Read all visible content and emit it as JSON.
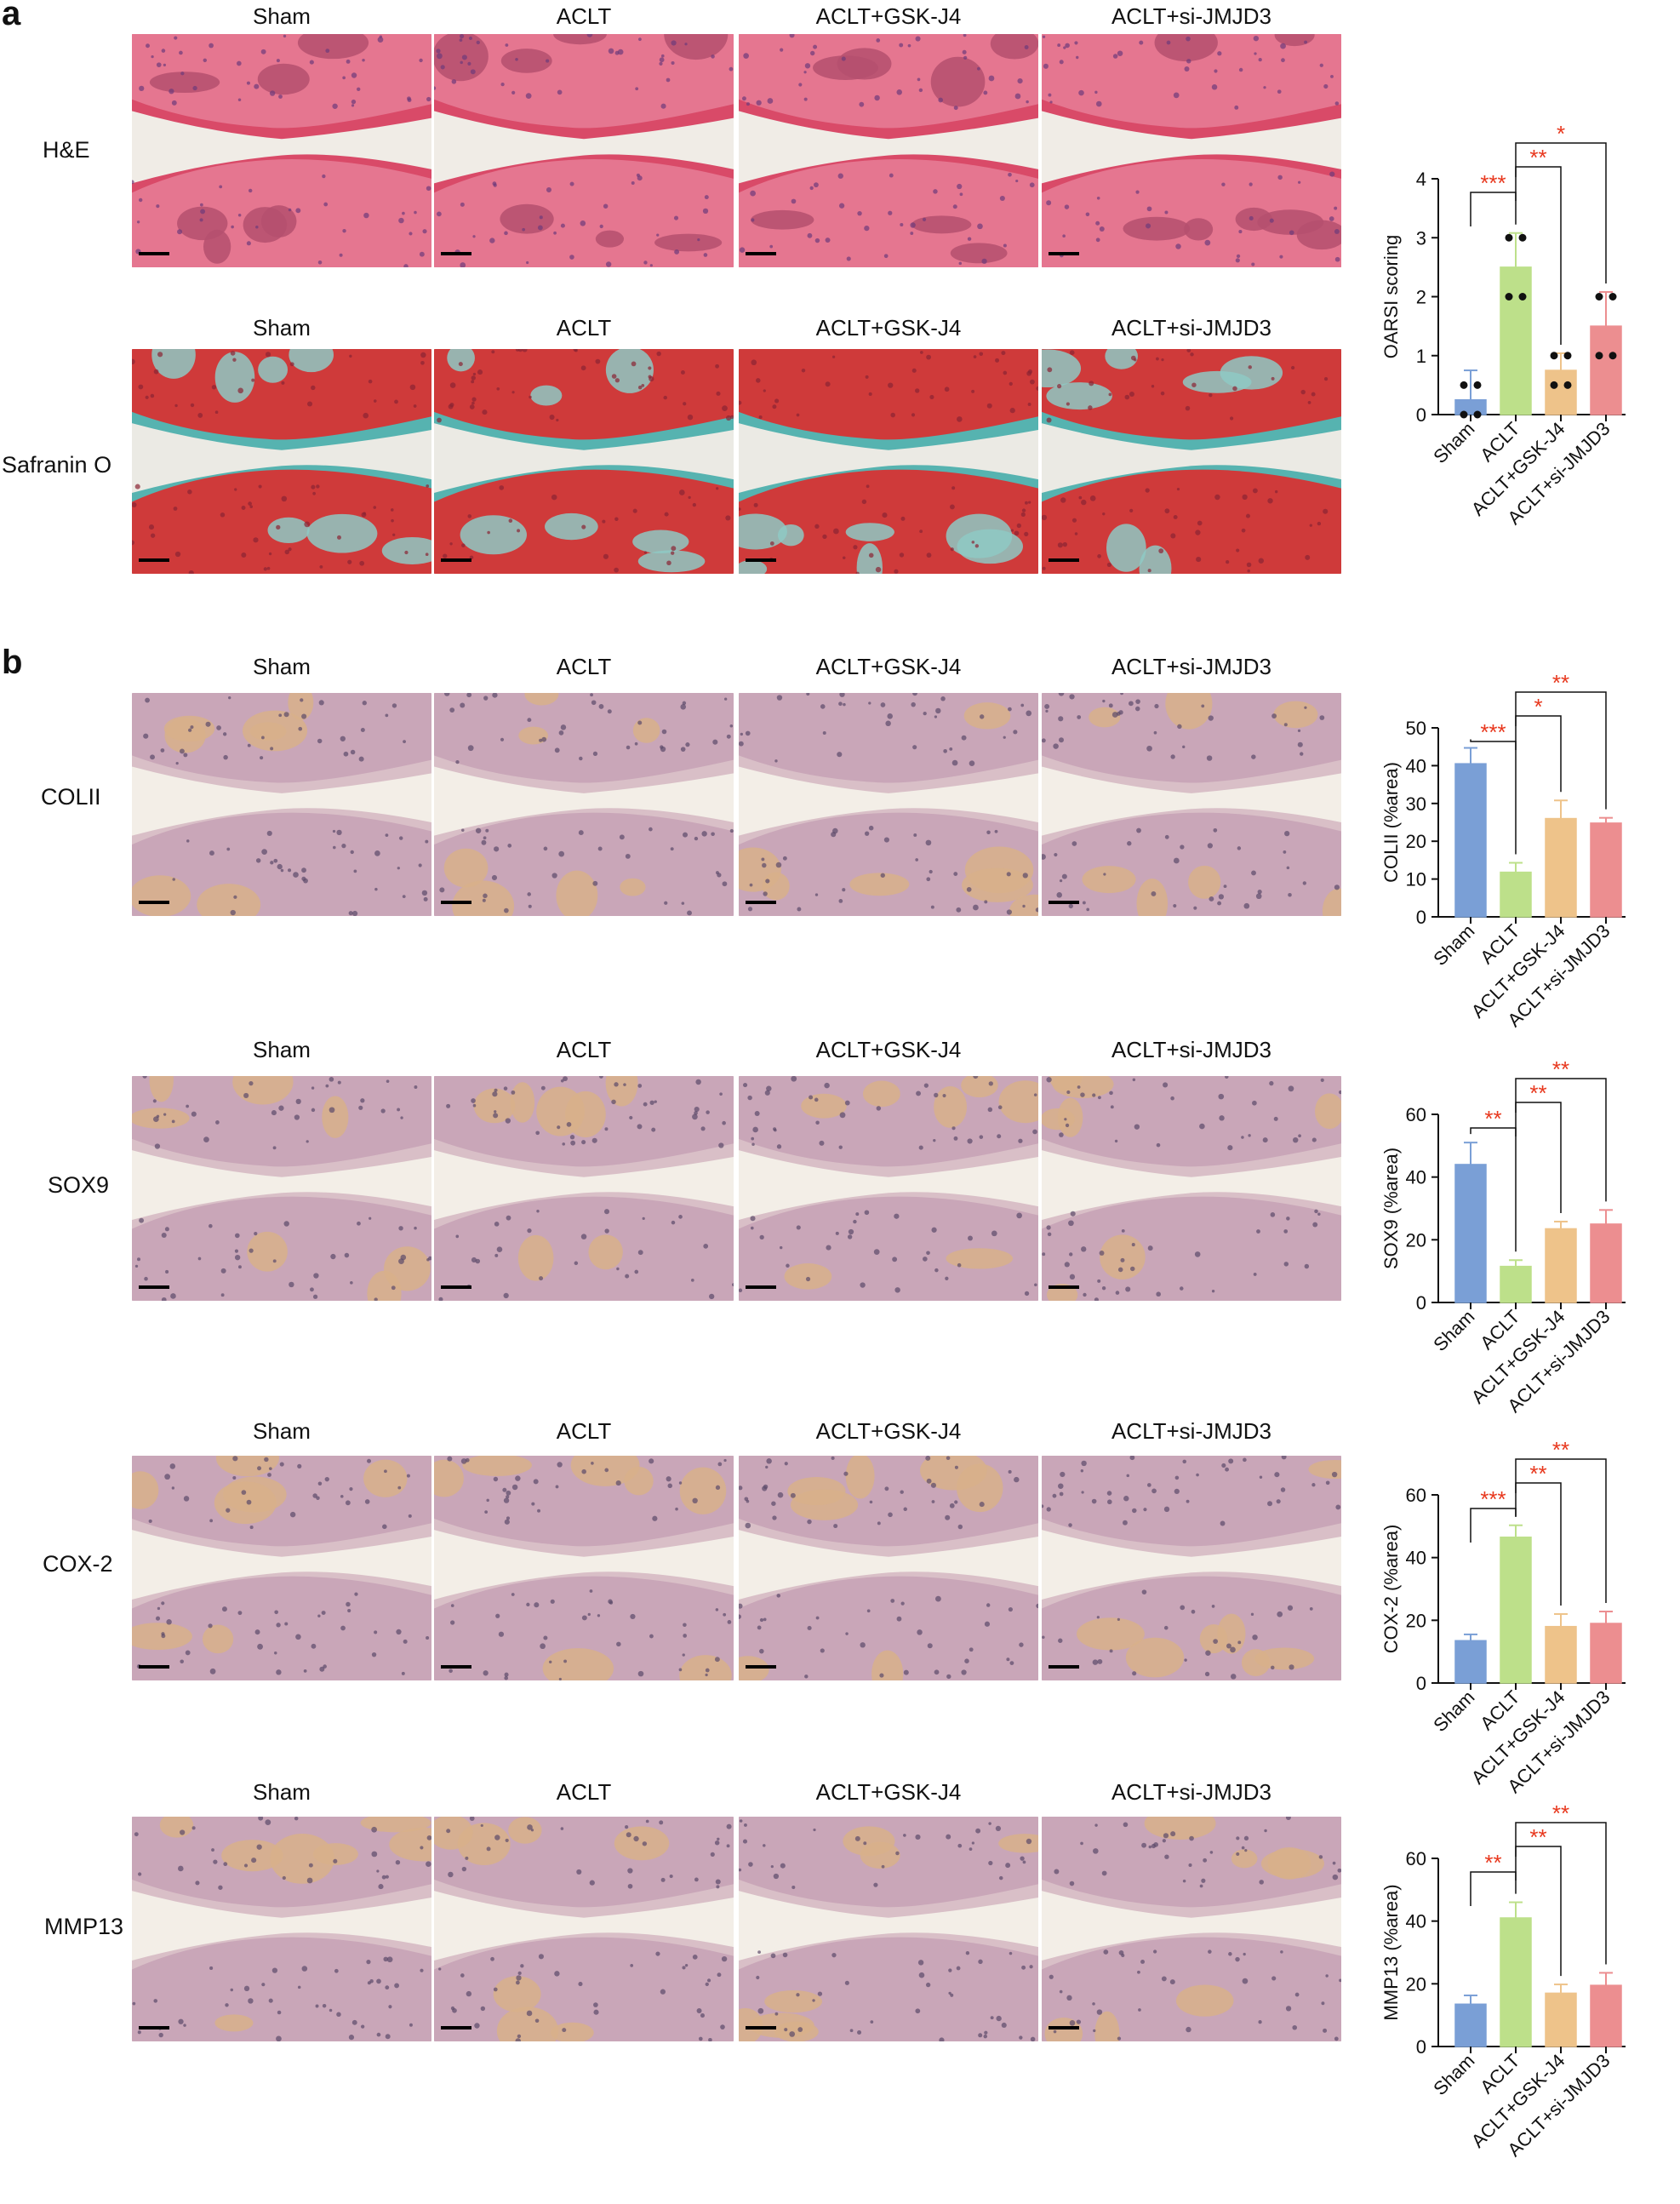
{
  "panels": {
    "a": {
      "letter": "a"
    },
    "b": {
      "letter": "b"
    }
  },
  "groups": [
    "Sham",
    "ACLT",
    "ACLT+GSK-J4",
    "ACLT+si-JMJD3"
  ],
  "colors": {
    "Sham": "#7a9fd6",
    "ACLT": "#bde08a",
    "ACLT+GSK-J4": "#eec38a",
    "ACLT+si-JMJD3": "#ec8e90",
    "significance": "#e8381e"
  },
  "rows": [
    {
      "label": "H&E",
      "stain": "he"
    },
    {
      "label": "Safranin O",
      "stain": "saf"
    },
    {
      "label": "COLII",
      "stain": "ihc"
    },
    {
      "label": "SOX9",
      "stain": "ihc"
    },
    {
      "label": "COX-2",
      "stain": "ihc"
    },
    {
      "label": "MMP13",
      "stain": "ihc"
    }
  ],
  "chart_data": [
    {
      "type": "bar",
      "categories": [
        "Sham",
        "ACLT",
        "ACLT+GSK-J4",
        "ACLT+si-JMJD3"
      ],
      "values": [
        0.25,
        2.5,
        0.75,
        1.5
      ],
      "errors": [
        0.5,
        0.58,
        0.29,
        0.58
      ],
      "points": [
        [
          0,
          0,
          0.5,
          0.5
        ],
        [
          2,
          3,
          3,
          2
        ],
        [
          0.5,
          0.5,
          1,
          1
        ],
        [
          1,
          1,
          2,
          2
        ]
      ],
      "ylabel": "OARSI scoring",
      "ylim": [
        0,
        4
      ],
      "yticks": [
        0,
        1,
        2,
        3,
        4
      ],
      "significance": [
        {
          "from": 0,
          "to": 1,
          "label": "***"
        },
        {
          "from": 1,
          "to": 2,
          "label": "**"
        },
        {
          "from": 1,
          "to": 3,
          "label": "*"
        }
      ]
    },
    {
      "type": "bar",
      "categories": [
        "Sham",
        "ACLT",
        "ACLT+GSK-J4",
        "ACLT+si-JMJD3"
      ],
      "values": [
        40.5,
        11.8,
        26,
        24.8
      ],
      "errors": [
        4.2,
        2.5,
        4.8,
        1.4
      ],
      "ylabel": "COLII (%area)",
      "ylim": [
        0,
        50
      ],
      "yticks": [
        0,
        10,
        20,
        30,
        40,
        50
      ],
      "significance": [
        {
          "from": 0,
          "to": 1,
          "label": "***"
        },
        {
          "from": 1,
          "to": 2,
          "label": "*"
        },
        {
          "from": 1,
          "to": 3,
          "label": "**"
        }
      ]
    },
    {
      "type": "bar",
      "categories": [
        "Sham",
        "ACLT",
        "ACLT+GSK-J4",
        "ACLT+si-JMJD3"
      ],
      "values": [
        44,
        11.5,
        23.5,
        25
      ],
      "errors": [
        7,
        2,
        2.3,
        4.5
      ],
      "ylabel": "SOX9 (%area)",
      "ylim": [
        0,
        60
      ],
      "yticks": [
        0,
        20,
        40,
        60
      ],
      "significance": [
        {
          "from": 0,
          "to": 1,
          "label": "**"
        },
        {
          "from": 1,
          "to": 2,
          "label": "**"
        },
        {
          "from": 1,
          "to": 3,
          "label": "**"
        }
      ]
    },
    {
      "type": "bar",
      "categories": [
        "Sham",
        "ACLT",
        "ACLT+GSK-J4",
        "ACLT+si-JMJD3"
      ],
      "values": [
        13.5,
        46.5,
        18,
        19
      ],
      "errors": [
        2,
        3.8,
        4,
        3.8
      ],
      "ylabel": "COX-2 (%area)",
      "ylim": [
        0,
        60
      ],
      "yticks": [
        0,
        20,
        40,
        60
      ],
      "significance": [
        {
          "from": 0,
          "to": 1,
          "label": "***"
        },
        {
          "from": 1,
          "to": 2,
          "label": "**"
        },
        {
          "from": 1,
          "to": 3,
          "label": "**"
        }
      ]
    },
    {
      "type": "bar",
      "categories": [
        "Sham",
        "ACLT",
        "ACLT+GSK-J4",
        "ACLT+si-JMJD3"
      ],
      "values": [
        13.5,
        41,
        17,
        19.5
      ],
      "errors": [
        2.8,
        5,
        2.8,
        4
      ],
      "ylabel": "MMP13 (%area)",
      "ylim": [
        0,
        60
      ],
      "yticks": [
        0,
        20,
        40,
        60
      ],
      "significance": [
        {
          "from": 0,
          "to": 1,
          "label": "**"
        },
        {
          "from": 1,
          "to": 2,
          "label": "**"
        },
        {
          "from": 1,
          "to": 3,
          "label": "**"
        }
      ]
    }
  ]
}
